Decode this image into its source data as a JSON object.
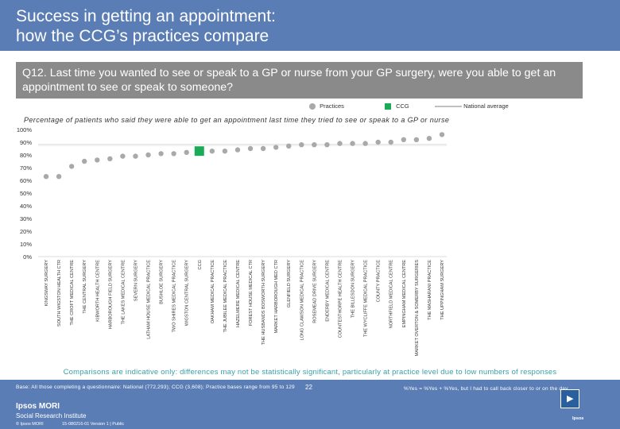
{
  "header": {
    "title_line1": "Success in getting an appointment:",
    "title_line2": "how the CCG’s practices compare"
  },
  "question": {
    "text": "Q12. Last time you wanted to see or speak to a GP or nurse from your GP surgery, were you able to get an appointment to see or speak to someone?"
  },
  "legend": {
    "practices": "Practices",
    "ccg": "CCG",
    "national": "National average"
  },
  "colors": {
    "header": "#5a7db5",
    "practice": "#a9a9a9",
    "ccg": "#1aab58",
    "national": "#ffffff",
    "axis_text": "#333333",
    "disclaimer": "#3aa0ab"
  },
  "chart_data": {
    "type": "scatter",
    "title": "Percentage of patients who said they were able to get an appointment last time they tried to see or speak to a GP or nurse",
    "ylabel": "",
    "ylim": [
      0,
      100
    ],
    "yticks": [
      "0%",
      "10%",
      "20%",
      "30%",
      "40%",
      "50%",
      "60%",
      "70%",
      "80%",
      "90%",
      "100%"
    ],
    "categories": [
      "KINGSWAY SURGERY",
      "SOUTH WIGSTON HEALTH CTR",
      "THE CROFT MEDICAL CENTRE",
      "THE CENTRAL SURGERY",
      "KIBWORTH HEALTH CENTRE",
      "HARBOROUGH FIELD SURGERY",
      "THE LAKES MEDICAL CENTRE",
      "SEVERN SURGERY",
      "LATHAM HOUSE MEDICAL PRACTICE",
      "BUSHLOE SURGERY",
      "TWO SHIRES MEDICAL PRACTICE",
      "WIGSTON CENTRAL SURGERY",
      "CCG",
      "OAKHAM MEDICAL PRACTICE",
      "THE JUBILEE MEDICAL PRACTICE",
      "HAZELMERE MEDICAL CENTRE",
      "FOREST HOUSE MEDICAL CTR",
      "THE HUSBANDS BOSWORTH SURGERY",
      "MARKET HARBOROUGH MED CTR",
      "GLENFIELD SURGERY",
      "LONG CLAWSON MEDICAL PRACTICE",
      "ROSEMEAD DRIVE SURGERY",
      "ENDERBY MEDICAL CENTRE",
      "COUNTESTHORPE HEALTH CENTRE",
      "THE BILLESDON SURGERY",
      "THE WYCLIFFE MEDICAL PRACTICE",
      "COUNTY PRACTICE",
      "NORTHFIELD MEDICAL CENTRE",
      "EMPINGHAM MEDICAL CENTRE",
      "MARKET OVERTON & SOMERBY SURGERIES",
      "THE MASHARANI PRACTICE",
      "THE UPPINGHAM SURGERY"
    ],
    "values": [
      63,
      63,
      71,
      75,
      76,
      77,
      79,
      79,
      80,
      81,
      81,
      82,
      83,
      83,
      83,
      84,
      85,
      85,
      86,
      87,
      88,
      88,
      88,
      89,
      89,
      89,
      90,
      90,
      92,
      92,
      93,
      96
    ],
    "ccg_index": 12,
    "national_average": 88
  },
  "footer": {
    "disclaimer": "Comparisons are indicative only: differences may not be statistically significant, particularly at practice level due to low numbers of responses",
    "base_note": "Base: All those completing a questionnaire: National (772,293); CCG (3,608); Practice bases range from 95 to 129",
    "yes_note": "%Yes = %Yes + %Yes, but I had to call back closer to or on the day",
    "page_number": "22",
    "logo_main": "Ipsos MORI",
    "logo_sub": "Social Research Institute",
    "copyright": "© Ipsos MORI",
    "version": "15-080216-01 Version 1 | Public",
    "ipsos_mark": "Ipsos"
  }
}
